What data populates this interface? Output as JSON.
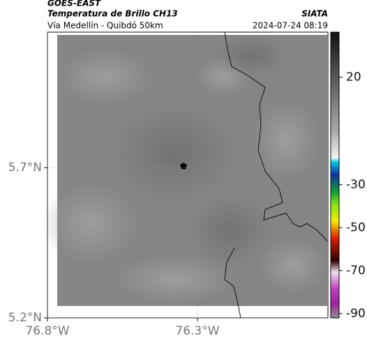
{
  "header": {
    "product": "GOES-EAST",
    "title": "Temperatura de Brillo CH13",
    "subtitle": "Vía Medellín - Quibdó 50km",
    "source": "SIATA",
    "timestamp": "2024-07-24 08:19"
  },
  "map": {
    "xlim": [
      -76.8,
      -75.865
    ],
    "ylim": [
      5.2,
      6.151
    ],
    "xticks": [
      {
        "value": -76.8,
        "label": "76.8°W"
      },
      {
        "value": -76.3,
        "label": "76.3°W"
      }
    ],
    "yticks": [
      {
        "value": 5.7,
        "label": "5.7°N"
      },
      {
        "value": 5.2,
        "label": "5.2°N"
      }
    ],
    "grid": true
  },
  "colorbar": {
    "lim": [
      -92,
      41
    ],
    "ticks": [
      20,
      -30,
      -50,
      -70,
      -90
    ]
  }
}
